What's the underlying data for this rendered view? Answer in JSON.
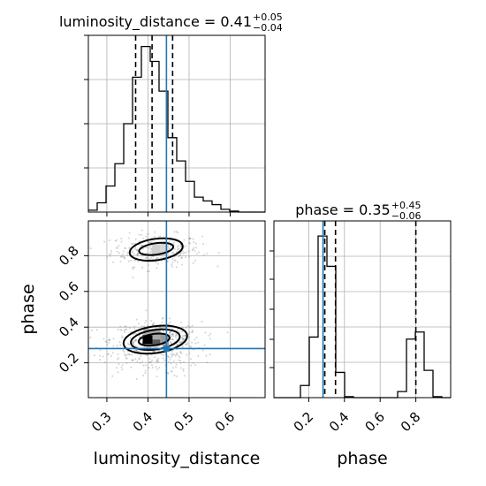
{
  "chart_data": {
    "type": "corner",
    "parameters": [
      "luminosity_distance",
      "phase"
    ],
    "axis_labels": {
      "x1": "luminosity_distance",
      "x2": "phase",
      "y2": "phase"
    },
    "truths": {
      "luminosity_distance": 0.445,
      "phase": 0.28
    },
    "colors": {
      "hist": "#000000",
      "truth": "#1f77b4",
      "grid": "#b0b0b0",
      "samples": "#808080"
    },
    "grid": true,
    "titles": {
      "luminosity_distance": {
        "prefix": "luminosity_distance = 0.41",
        "plus": "+0.05",
        "minus": "−0.04"
      },
      "phase": {
        "prefix": "phase = 0.35",
        "plus": "+0.45",
        "minus": "−0.06"
      }
    },
    "quantiles": {
      "luminosity_distance": [
        0.37,
        0.41,
        0.46
      ],
      "phase": [
        0.29,
        0.35,
        0.8
      ]
    },
    "ranges": {
      "luminosity_distance": [
        0.255,
        0.685
      ],
      "phase": [
        0.005,
        0.995
      ]
    },
    "ticks": {
      "luminosity_distance": [
        "0.3",
        "0.4",
        "0.5",
        "0.6"
      ],
      "phase_x": [
        "0.2",
        "0.4",
        "0.6",
        "0.8"
      ],
      "phase_y": [
        "0.2",
        "0.4",
        "0.6",
        "0.8"
      ]
    },
    "hist_luminosity_distance": {
      "edges": [
        0.255,
        0.2765,
        0.298,
        0.3195,
        0.341,
        0.3625,
        0.384,
        0.4055,
        0.427,
        0.4485,
        0.47,
        0.4915,
        0.513,
        0.5345,
        0.556,
        0.5775,
        0.599,
        0.6205,
        0.642,
        0.6635,
        0.685
      ],
      "counts": [
        2,
        10,
        28,
        52,
        95,
        145,
        178,
        162,
        130,
        80,
        55,
        33,
        16,
        12,
        8,
        3,
        1,
        0,
        0,
        0
      ],
      "ymax": 190
    },
    "hist_phase": {
      "edges": [
        0.005,
        0.0545,
        0.104,
        0.1535,
        0.203,
        0.2525,
        0.302,
        0.3515,
        0.401,
        0.4505,
        0.5,
        0.5495,
        0.599,
        0.6485,
        0.698,
        0.7475,
        0.797,
        0.8465,
        0.896,
        0.9455,
        0.995
      ],
      "counts": [
        0,
        0,
        0,
        12,
        60,
        160,
        130,
        25,
        1,
        0,
        0,
        0,
        0,
        0,
        6,
        58,
        65,
        27,
        1,
        0
      ],
      "ymax": 175
    },
    "samples_2d": {
      "clusters": [
        {
          "cx": 0.42,
          "cy": 0.83,
          "sx": 0.055,
          "sy": 0.045,
          "n": 300
        },
        {
          "cx": 0.42,
          "cy": 0.33,
          "sx": 0.055,
          "sy": 0.05,
          "n": 420
        },
        {
          "cx": 0.4,
          "cy": 0.22,
          "sx": 0.06,
          "sy": 0.05,
          "n": 120
        }
      ],
      "dense_cell": {
        "x": 0.398,
        "y": 0.33
      }
    },
    "contours": [
      {
        "cx": 0.42,
        "cy": 0.835,
        "rx": 0.065,
        "ry": 0.06
      },
      {
        "cx": 0.42,
        "cy": 0.838,
        "rx": 0.042,
        "ry": 0.032
      },
      {
        "cx": 0.418,
        "cy": 0.33,
        "rx": 0.078,
        "ry": 0.075
      },
      {
        "cx": 0.418,
        "cy": 0.33,
        "rx": 0.06,
        "ry": 0.055
      },
      {
        "cx": 0.415,
        "cy": 0.33,
        "rx": 0.038,
        "ry": 0.032
      }
    ]
  }
}
